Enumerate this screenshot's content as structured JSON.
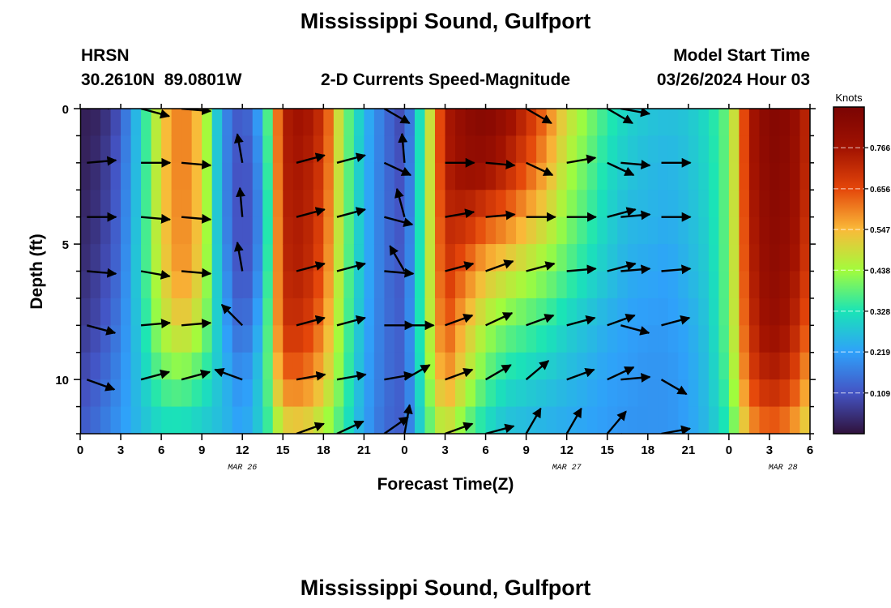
{
  "header": {
    "title": "Mississippi Sound, Gulfport",
    "station_id": "HRSN",
    "station_coords": "30.2610N  89.0801W",
    "subtitle": "2-D Currents Speed-Magnitude",
    "model_label": "Model Start Time",
    "model_time": "03/26/2024 Hour 03",
    "footer_title": "Mississippi Sound, Gulfport"
  },
  "colors": {
    "colormap": [
      "#30123b",
      "#4454c4",
      "#2fa1fa",
      "#1ae4b6",
      "#a2fc3c",
      "#faba39",
      "#e4460a",
      "#a11201",
      "#7a0403"
    ],
    "arrow": "#000000",
    "axis": "#000000"
  },
  "chart_data": {
    "type": "heatmap",
    "xlabel": "Forecast Time(Z)",
    "ylabel": "Depth (ft)",
    "x_tick_labels": [
      "0",
      "3",
      "6",
      "9",
      "12",
      "15",
      "18",
      "21",
      "0",
      "3",
      "6",
      "9",
      "12",
      "15",
      "18",
      "21",
      "0",
      "3",
      "6"
    ],
    "x_range_hours": [
      0,
      54
    ],
    "date_labels": [
      {
        "label": "MAR 26",
        "hour": 12
      },
      {
        "label": "MAR 27",
        "hour": 36
      },
      {
        "label": "MAR 28",
        "hour": 52
      }
    ],
    "y_tick_labels": [
      "0",
      "5",
      "10"
    ],
    "y_range_ft": [
      0,
      12
    ],
    "y_inverted": true,
    "colorbar": {
      "title": "Knots",
      "ticks": [
        "0.766",
        "0.656",
        "0.547",
        "0.438",
        "0.328",
        "0.219",
        "0.109"
      ],
      "range": [
        0,
        0.875
      ]
    },
    "depths_ft": [
      0,
      2,
      4,
      6,
      8,
      10,
      12
    ],
    "hours": [
      0,
      1.5,
      3,
      4.5,
      6,
      7.5,
      9,
      10.5,
      12,
      13.5,
      15,
      16.5,
      18,
      19.5,
      21,
      22.5,
      24,
      25.5,
      27,
      28.5,
      30,
      31.5,
      33,
      34.5,
      36,
      37.5,
      39,
      40.5,
      42,
      43.5,
      45,
      46.5,
      48,
      49.5,
      51,
      52.5,
      54
    ],
    "speed_knots": [
      [
        0.02,
        0.03,
        0.11,
        0.3,
        0.52,
        0.62,
        0.52,
        0.2,
        0.1,
        0.25,
        0.74,
        0.78,
        0.7,
        0.42,
        0.26,
        0.15,
        0.08,
        0.4,
        0.74,
        0.82,
        0.85,
        0.8,
        0.72,
        0.62,
        0.5,
        0.42,
        0.35,
        0.3,
        0.28,
        0.27,
        0.28,
        0.32,
        0.4,
        0.74,
        0.85,
        0.83,
        0.7
      ],
      [
        0.02,
        0.05,
        0.13,
        0.3,
        0.52,
        0.62,
        0.52,
        0.2,
        0.08,
        0.22,
        0.74,
        0.76,
        0.68,
        0.42,
        0.25,
        0.15,
        0.09,
        0.4,
        0.74,
        0.8,
        0.8,
        0.74,
        0.66,
        0.57,
        0.46,
        0.39,
        0.32,
        0.28,
        0.26,
        0.25,
        0.27,
        0.31,
        0.4,
        0.74,
        0.84,
        0.82,
        0.7
      ],
      [
        0.03,
        0.06,
        0.14,
        0.31,
        0.52,
        0.61,
        0.52,
        0.2,
        0.08,
        0.2,
        0.73,
        0.75,
        0.66,
        0.42,
        0.25,
        0.15,
        0.1,
        0.4,
        0.72,
        0.72,
        0.66,
        0.62,
        0.56,
        0.5,
        0.42,
        0.36,
        0.3,
        0.26,
        0.25,
        0.24,
        0.26,
        0.3,
        0.4,
        0.73,
        0.83,
        0.81,
        0.68
      ],
      [
        0.04,
        0.08,
        0.15,
        0.32,
        0.5,
        0.6,
        0.5,
        0.22,
        0.08,
        0.22,
        0.72,
        0.74,
        0.64,
        0.41,
        0.25,
        0.15,
        0.11,
        0.4,
        0.7,
        0.62,
        0.54,
        0.5,
        0.46,
        0.42,
        0.37,
        0.32,
        0.28,
        0.24,
        0.23,
        0.22,
        0.25,
        0.29,
        0.4,
        0.72,
        0.82,
        0.79,
        0.66
      ],
      [
        0.06,
        0.1,
        0.17,
        0.3,
        0.46,
        0.52,
        0.45,
        0.24,
        0.12,
        0.26,
        0.7,
        0.7,
        0.6,
        0.4,
        0.24,
        0.15,
        0.12,
        0.4,
        0.66,
        0.54,
        0.45,
        0.4,
        0.37,
        0.34,
        0.3,
        0.27,
        0.24,
        0.22,
        0.21,
        0.21,
        0.23,
        0.28,
        0.4,
        0.7,
        0.8,
        0.76,
        0.62
      ],
      [
        0.09,
        0.13,
        0.19,
        0.28,
        0.38,
        0.4,
        0.35,
        0.26,
        0.18,
        0.3,
        0.62,
        0.62,
        0.54,
        0.38,
        0.23,
        0.15,
        0.12,
        0.38,
        0.6,
        0.48,
        0.38,
        0.32,
        0.3,
        0.28,
        0.26,
        0.24,
        0.22,
        0.21,
        0.2,
        0.2,
        0.22,
        0.27,
        0.38,
        0.66,
        0.74,
        0.7,
        0.55
      ],
      [
        0.12,
        0.16,
        0.21,
        0.26,
        0.3,
        0.3,
        0.28,
        0.26,
        0.22,
        0.3,
        0.48,
        0.5,
        0.44,
        0.34,
        0.22,
        0.14,
        0.12,
        0.34,
        0.48,
        0.38,
        0.3,
        0.26,
        0.25,
        0.24,
        0.23,
        0.22,
        0.21,
        0.2,
        0.2,
        0.2,
        0.22,
        0.26,
        0.34,
        0.56,
        0.62,
        0.58,
        0.48
      ]
    ],
    "vector_hours": [
      0.5,
      4.5,
      7.5,
      12,
      16,
      19,
      22.5,
      24,
      27,
      30,
      33,
      36,
      39,
      40,
      43
    ],
    "vector_direction_deg": [
      [
        10,
        345,
        355,
        105,
        null,
        null,
        330,
        95,
        10,
        15,
        330,
        10,
        330,
        350,
        null
      ],
      [
        5,
        0,
        355,
        100,
        15,
        15,
        335,
        95,
        0,
        355,
        335,
        10,
        335,
        355,
        0
      ],
      [
        0,
        355,
        355,
        95,
        15,
        15,
        345,
        105,
        10,
        5,
        0,
        0,
        15,
        5,
        0
      ],
      [
        355,
        350,
        355,
        100,
        15,
        15,
        355,
        120,
        15,
        20,
        15,
        5,
        15,
        5,
        5
      ],
      [
        345,
        5,
        5,
        135,
        15,
        15,
        0,
        0,
        20,
        25,
        20,
        15,
        20,
        345,
        15
      ],
      [
        340,
        15,
        15,
        160,
        10,
        10,
        10,
        30,
        20,
        30,
        40,
        20,
        25,
        5,
        330
      ],
      [
        null,
        null,
        null,
        null,
        20,
        25,
        35,
        80,
        20,
        15,
        60,
        60,
        50,
        330,
        10
      ]
    ]
  }
}
